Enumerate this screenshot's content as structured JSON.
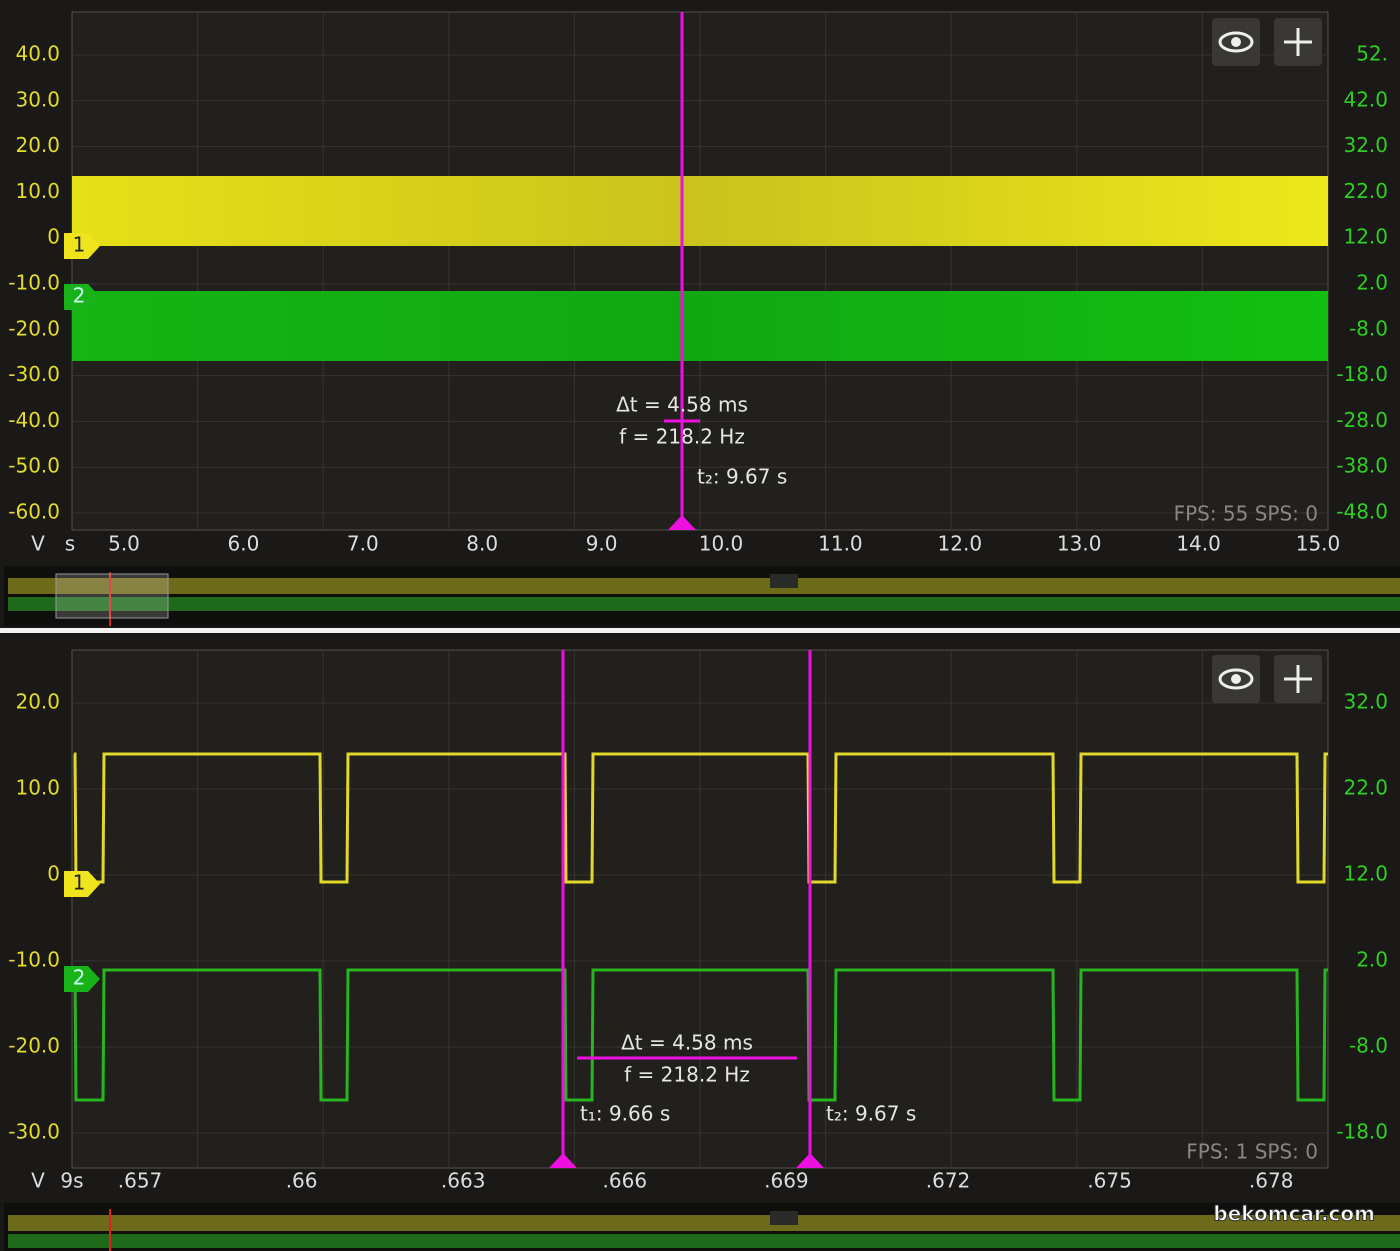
{
  "panels": [
    {
      "left_ticks": [
        "40.0",
        "30.0",
        "20.0",
        "10.0",
        "0",
        "-10.0",
        "-20.0",
        "-30.0",
        "-40.0",
        "-50.0",
        "-60.0"
      ],
      "right_ticks": [
        "52.",
        "42.0",
        "32.0",
        "22.0",
        "12.0",
        "2.0",
        "-8.0",
        "-18.0",
        "-28.0",
        "-38.0",
        "-48.0"
      ],
      "unit_left": "V",
      "unit_x": "s",
      "x_ticks": [
        "5.0",
        "6.0",
        "7.0",
        "8.0",
        "9.0",
        "10.0",
        "11.0",
        "12.0",
        "13.0",
        "14.0",
        "15.0"
      ],
      "channels": [
        "1",
        "2"
      ],
      "delta": "Δt = 4.58 ms",
      "freq": "f = 218.2 Hz",
      "cursor_labels": [
        "t₂: 9.67 s"
      ],
      "status": "FPS: 55  SPS: 0"
    },
    {
      "left_ticks": [
        "20.0",
        "10.0",
        "0",
        "-10.0",
        "-20.0",
        "-30.0"
      ],
      "right_ticks": [
        "32.0",
        "22.0",
        "12.0",
        "2.0",
        "-8.0",
        "-18.0"
      ],
      "unit_left": "V",
      "unit_x": "9s",
      "x_ticks": [
        ".657",
        ".66",
        ".663",
        ".666",
        ".669",
        ".672",
        ".675",
        ".678"
      ],
      "channels": [
        "1",
        "2"
      ],
      "delta": "Δt = 4.58 ms",
      "freq": "f = 218.2 Hz",
      "cursor_labels": [
        "t₁: 9.66 s",
        "t₂: 9.67 s"
      ],
      "status": "FPS: 1  SPS: 0"
    }
  ],
  "watermark": "bekomcar.com"
}
